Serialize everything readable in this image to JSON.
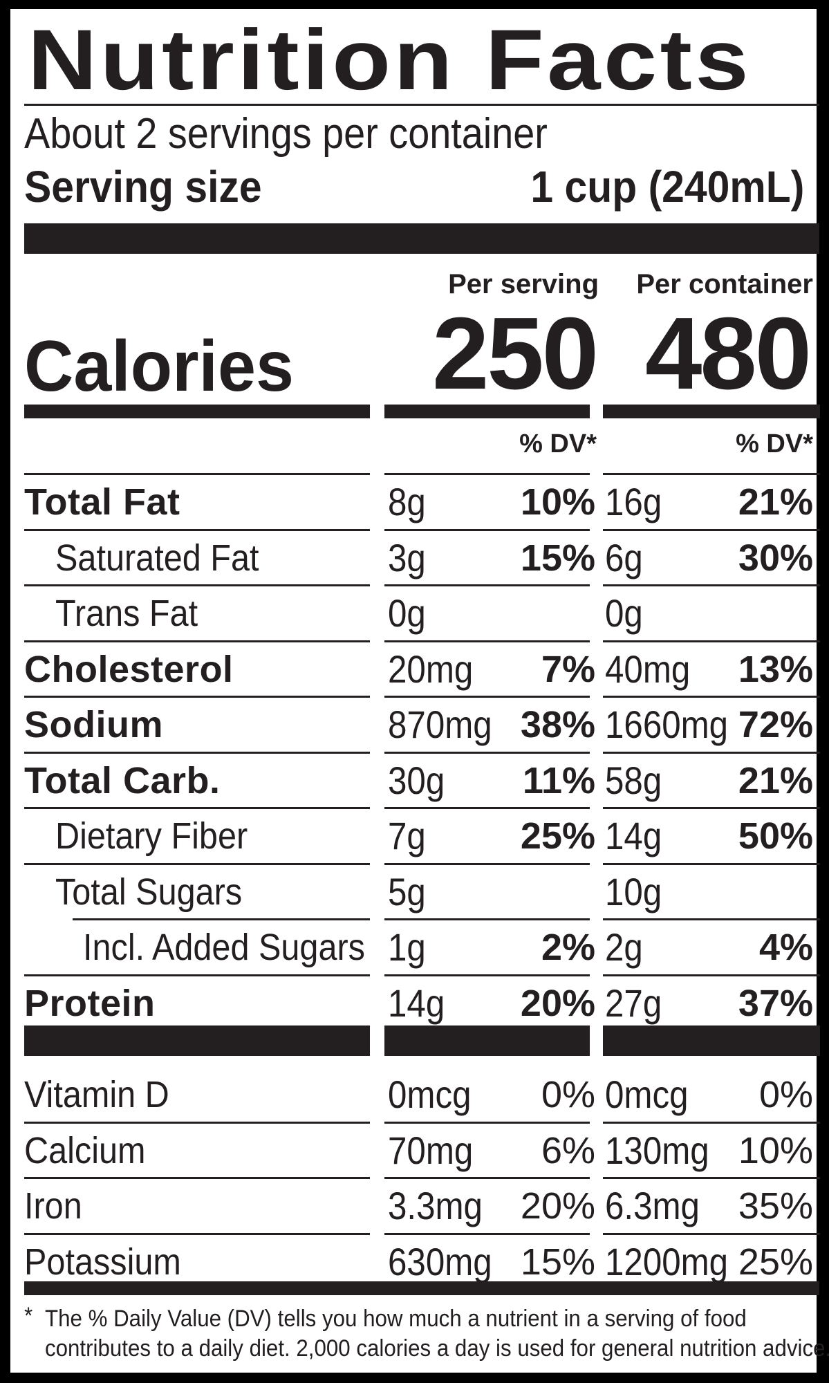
{
  "title": "Nutrition Facts",
  "servings_per_container": "About 2 servings per container",
  "serving_size_label": "Serving size",
  "serving_size_value": "1 cup (240mL)",
  "col_per_serving": "Per serving",
  "col_per_container": "Per container",
  "calories_label": "Calories",
  "calories_per_serving": "250",
  "calories_per_container": "480",
  "dv_header_serving": "% DV*",
  "dv_header_container": "% DV*",
  "nutrients": [
    {
      "label": "Total Fat",
      "s_amt": "8g",
      "s_dv": "10%",
      "c_amt": "16g",
      "c_dv": "21%"
    },
    {
      "label": "Saturated Fat",
      "s_amt": "3g",
      "s_dv": "15%",
      "c_amt": "6g",
      "c_dv": "30%"
    },
    {
      "label": "Trans Fat",
      "s_amt": "0g",
      "s_dv": "",
      "c_amt": "0g",
      "c_dv": ""
    },
    {
      "label": "Cholesterol",
      "s_amt": "20mg",
      "s_dv": "7%",
      "c_amt": "40mg",
      "c_dv": "13%"
    },
    {
      "label": "Sodium",
      "s_amt": "870mg",
      "s_dv": "38%",
      "c_amt": "1660mg",
      "c_dv": "72%"
    },
    {
      "label": "Total Carb.",
      "s_amt": "30g",
      "s_dv": "11%",
      "c_amt": "58g",
      "c_dv": "21%"
    },
    {
      "label": "Dietary Fiber",
      "s_amt": "7g",
      "s_dv": "25%",
      "c_amt": "14g",
      "c_dv": "50%"
    },
    {
      "label": "Total Sugars",
      "s_amt": "5g",
      "s_dv": "",
      "c_amt": "10g",
      "c_dv": ""
    },
    {
      "label": "Incl. Added Sugars",
      "s_amt": "1g",
      "s_dv": "2%",
      "c_amt": "2g",
      "c_dv": "4%"
    },
    {
      "label": "Protein",
      "s_amt": "14g",
      "s_dv": "20%",
      "c_amt": "27g",
      "c_dv": "37%"
    }
  ],
  "vitamins": [
    {
      "label": "Vitamin D",
      "s_amt": "0mcg",
      "s_dv": "0%",
      "c_amt": "0mcg",
      "c_dv": "0%"
    },
    {
      "label": "Calcium",
      "s_amt": "70mg",
      "s_dv": "6%",
      "c_amt": "130mg",
      "c_dv": "10%"
    },
    {
      "label": "Iron",
      "s_amt": "3.3mg",
      "s_dv": "20%",
      "c_amt": "6.3mg",
      "c_dv": "35%"
    },
    {
      "label": "Potassium",
      "s_amt": "630mg",
      "s_dv": "15%",
      "c_amt": "1200mg",
      "c_dv": "25%"
    }
  ],
  "footnote_star": "*",
  "footnote_line1": "The % Daily Value (DV) tells you how much a nutrient in a serving of food",
  "footnote_line2": "contributes to a daily diet. 2,000 calories a day is used for general nutrition advice."
}
